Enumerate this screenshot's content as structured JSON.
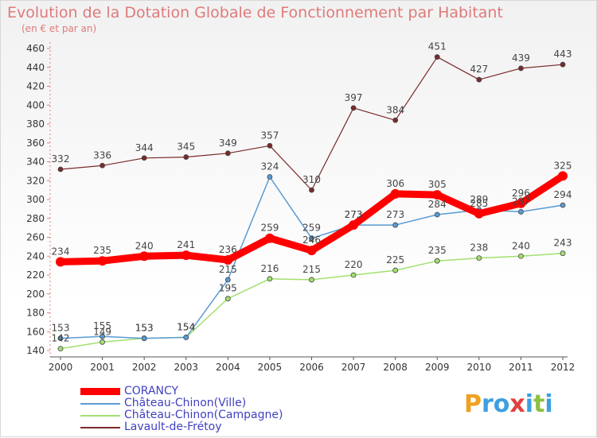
{
  "title": "Evolution de la Dotation Globale de Fonctionnement par Habitant",
  "subtitle": "(en € et par an)",
  "logo": {
    "text": "Proxiti",
    "letters": [
      {
        "ch": "P",
        "color": "#f0a020"
      },
      {
        "ch": "r",
        "color": "#3ca0e0"
      },
      {
        "ch": "o",
        "color": "#3ca0e0"
      },
      {
        "ch": "x",
        "color": "#e04040"
      },
      {
        "ch": "i",
        "color": "#3ca0e0"
      },
      {
        "ch": "t",
        "color": "#8cc040"
      },
      {
        "ch": "i",
        "color": "#3ca0e0"
      }
    ]
  },
  "chart_data": {
    "type": "line",
    "title": "Evolution de la Dotation Globale de Fonctionnement par Habitant",
    "subtitle": "(en € et par an)",
    "x": [
      2000,
      2001,
      2002,
      2003,
      2004,
      2005,
      2006,
      2007,
      2008,
      2009,
      2010,
      2011,
      2012
    ],
    "ylim": [
      140,
      460
    ],
    "yticks": [
      140,
      160,
      180,
      200,
      220,
      240,
      260,
      280,
      300,
      320,
      340,
      360,
      380,
      400,
      420,
      440,
      460
    ],
    "grid": false,
    "legend_position": "bottom-left",
    "series": [
      {
        "name": "CORANCY",
        "color": "#ff0000",
        "width": 9,
        "marker": 6,
        "values": [
          234,
          235,
          240,
          241,
          236,
          259,
          246,
          273,
          306,
          305,
          285,
          296,
          325
        ],
        "labels": [
          "234",
          "235",
          "240",
          "241",
          "236",
          "259",
          "246",
          "273",
          "306",
          "305",
          "285",
          "296",
          "325"
        ]
      },
      {
        "name": "Château-Chinon(Ville)",
        "color": "#5a9bd4",
        "width": 1.5,
        "marker": 3,
        "values": [
          153,
          155,
          153,
          154,
          215,
          324,
          259,
          273,
          273,
          284,
          289,
          287,
          294
        ],
        "labels": [
          "153",
          "155",
          "153",
          "154",
          "215",
          "324",
          "259",
          "273",
          "273",
          "284",
          "289",
          "287",
          "294"
        ]
      },
      {
        "name": "Château-Chinon(Campagne)",
        "color": "#a3e070",
        "width": 1.5,
        "marker": 3,
        "values": [
          142,
          149,
          153,
          154,
          195,
          216,
          215,
          220,
          225,
          235,
          238,
          240,
          243
        ],
        "labels": [
          "142",
          "149",
          "153",
          "154",
          "195",
          "216",
          "215",
          "220",
          "225",
          "235",
          "238",
          "240",
          "243"
        ]
      },
      {
        "name": "Lavault-de-Frétoy",
        "color": "#7a2a2a",
        "width": 1.2,
        "marker": 3,
        "values": [
          332,
          336,
          344,
          345,
          349,
          357,
          310,
          397,
          384,
          451,
          427,
          439,
          443
        ],
        "labels": [
          "332",
          "336",
          "344",
          "345",
          "349",
          "357",
          "310",
          "397",
          "384",
          "451",
          "427",
          "439",
          "443"
        ]
      }
    ]
  }
}
